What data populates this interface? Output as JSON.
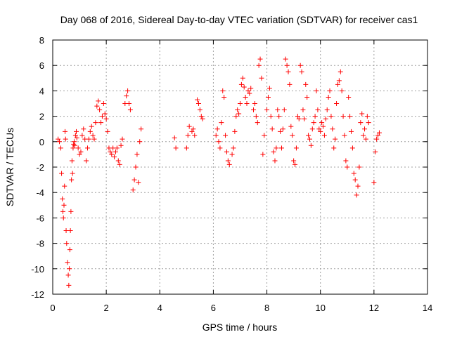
{
  "chart_data": {
    "type": "scatter",
    "title": "Day 068 of 2016, Sidereal Day-to-day VTEC variation (SDTVAR) for receiver cas1",
    "xlabel": "GPS time / hours",
    "ylabel": "SDTVAR / TECUs",
    "xlim": [
      0,
      14
    ],
    "ylim": [
      -12,
      8
    ],
    "xticks": [
      0,
      2,
      4,
      6,
      8,
      10,
      12,
      14
    ],
    "xtick_labels": [
      "0",
      "2",
      "4",
      "6",
      "8",
      "10",
      "12",
      "14"
    ],
    "yticks": [
      8,
      6,
      4,
      2,
      0,
      -2,
      -4,
      -6,
      -8,
      -10,
      -12
    ],
    "ytick_labels": [
      "8",
      "6",
      "4",
      "2",
      "0",
      "-2",
      "-4",
      "-6",
      "-8",
      "-10",
      "-12"
    ],
    "grid": true,
    "marker": "+",
    "marker_color": "#ff0000",
    "series": [
      {
        "name": "SDTVAR",
        "x": [
          0.2,
          0.25,
          0.3,
          0.33,
          0.36,
          0.38,
          0.4,
          0.42,
          0.44,
          0.46,
          0.48,
          0.5,
          0.52,
          0.55,
          0.58,
          0.6,
          0.62,
          0.64,
          0.66,
          0.68,
          0.7,
          0.72,
          0.74,
          0.76,
          0.78,
          0.8,
          0.82,
          0.85,
          0.88,
          0.9,
          0.95,
          1.0,
          1.05,
          1.1,
          1.15,
          1.2,
          1.25,
          1.3,
          1.35,
          1.4,
          1.45,
          1.5,
          1.55,
          1.6,
          1.65,
          1.7,
          1.75,
          1.8,
          1.85,
          1.9,
          1.95,
          2.0,
          2.05,
          2.1,
          2.15,
          2.2,
          2.25,
          2.3,
          2.35,
          2.4,
          2.45,
          2.5,
          2.55,
          2.6,
          2.7,
          2.75,
          2.8,
          2.85,
          2.9,
          3.0,
          3.05,
          3.1,
          3.15,
          3.2,
          3.25,
          3.3,
          4.55,
          4.6,
          5.0,
          5.05,
          5.1,
          5.2,
          5.25,
          5.3,
          5.4,
          5.45,
          5.5,
          5.55,
          5.6,
          6.1,
          6.15,
          6.2,
          6.25,
          6.3,
          6.35,
          6.4,
          6.45,
          6.5,
          6.55,
          6.6,
          6.7,
          6.75,
          6.8,
          6.85,
          6.9,
          6.95,
          7.0,
          7.05,
          7.1,
          7.15,
          7.2,
          7.25,
          7.3,
          7.35,
          7.4,
          7.5,
          7.55,
          7.6,
          7.65,
          7.7,
          7.75,
          7.8,
          7.85,
          7.9,
          8.0,
          8.05,
          8.1,
          8.15,
          8.2,
          8.25,
          8.3,
          8.35,
          8.4,
          8.45,
          8.5,
          8.55,
          8.6,
          8.65,
          8.7,
          8.75,
          8.8,
          8.85,
          8.9,
          8.95,
          9.0,
          9.05,
          9.1,
          9.15,
          9.2,
          9.25,
          9.3,
          9.35,
          9.4,
          9.45,
          9.5,
          9.55,
          9.6,
          9.65,
          9.7,
          9.75,
          9.8,
          9.85,
          9.9,
          9.95,
          10.0,
          10.05,
          10.1,
          10.15,
          10.2,
          10.25,
          10.3,
          10.35,
          10.4,
          10.45,
          10.5,
          10.55,
          10.6,
          10.65,
          10.7,
          10.75,
          10.8,
          10.85,
          10.9,
          10.95,
          11.0,
          11.05,
          11.1,
          11.15,
          11.2,
          11.25,
          11.3,
          11.35,
          11.4,
          11.45,
          11.5,
          11.55,
          11.6,
          11.65,
          11.7,
          11.75,
          11.8,
          12.0,
          12.05,
          12.1,
          12.15,
          12.2
        ],
        "y": [
          0.2,
          0.0,
          -0.5,
          -2.5,
          -4.5,
          -5.5,
          -6.0,
          -5.0,
          -3.5,
          0.8,
          0.2,
          -7.0,
          -8.0,
          -9.5,
          -10.5,
          -11.3,
          -10.0,
          -8.5,
          -7.0,
          -5.5,
          -3.0,
          -1.5,
          -2.5,
          -0.5,
          -0.2,
          0.0,
          -0.3,
          0.5,
          0.8,
          0.3,
          -0.5,
          -1.0,
          -0.8,
          0.5,
          1.0,
          0.2,
          -1.5,
          -0.5,
          0.2,
          0.8,
          1.2,
          0.5,
          0.2,
          1.5,
          2.8,
          3.2,
          2.5,
          1.5,
          2.0,
          3.0,
          2.2,
          1.8,
          0.8,
          -0.5,
          -0.8,
          -1.0,
          -0.5,
          -1.2,
          -0.8,
          -0.5,
          -1.5,
          -1.8,
          -0.3,
          0.2,
          3.0,
          3.6,
          4.0,
          3.0,
          2.5,
          -3.8,
          -3.0,
          -2.0,
          -1.0,
          -3.2,
          0.0,
          1.0,
          0.3,
          -0.5,
          -0.5,
          0.5,
          1.2,
          0.8,
          1.0,
          0.5,
          3.3,
          3.0,
          2.5,
          2.0,
          1.8,
          0.5,
          1.0,
          0.0,
          -0.5,
          1.5,
          4.0,
          3.5,
          0.5,
          -0.8,
          -1.5,
          -1.8,
          -1.0,
          -0.5,
          0.8,
          2.0,
          2.5,
          2.2,
          3.0,
          4.5,
          5.0,
          4.3,
          3.5,
          3.0,
          4.0,
          3.8,
          4.2,
          2.5,
          3.0,
          2.0,
          1.5,
          6.0,
          6.5,
          5.0,
          -1.0,
          0.5,
          2.5,
          3.5,
          4.2,
          2.0,
          1.0,
          -0.8,
          -1.5,
          -0.5,
          2.5,
          2.0,
          0.8,
          -0.5,
          1.0,
          2.5,
          6.5,
          6.0,
          5.5,
          4.5,
          1.2,
          0.5,
          -1.5,
          -1.8,
          -0.5,
          2.0,
          1.8,
          6.0,
          5.5,
          2.5,
          1.8,
          4.5,
          3.5,
          0.5,
          0.2,
          -0.3,
          1.0,
          1.5,
          2.0,
          4.0,
          2.5,
          1.0,
          0.8,
          1.5,
          1.2,
          0.5,
          1.8,
          2.5,
          3.5,
          4.0,
          2.0,
          1.0,
          -0.5,
          0.2,
          3.0,
          4.5,
          4.8,
          5.5,
          4.0,
          2.0,
          0.5,
          -1.5,
          -2.0,
          3.5,
          2.0,
          0.8,
          -0.5,
          -2.5,
          -3.0,
          -4.2,
          -3.5,
          -2.0,
          1.5,
          2.2,
          0.5,
          1.0,
          0.2,
          2.0,
          1.5,
          -3.2,
          -0.8,
          0.2,
          0.5,
          0.7
        ]
      }
    ]
  }
}
